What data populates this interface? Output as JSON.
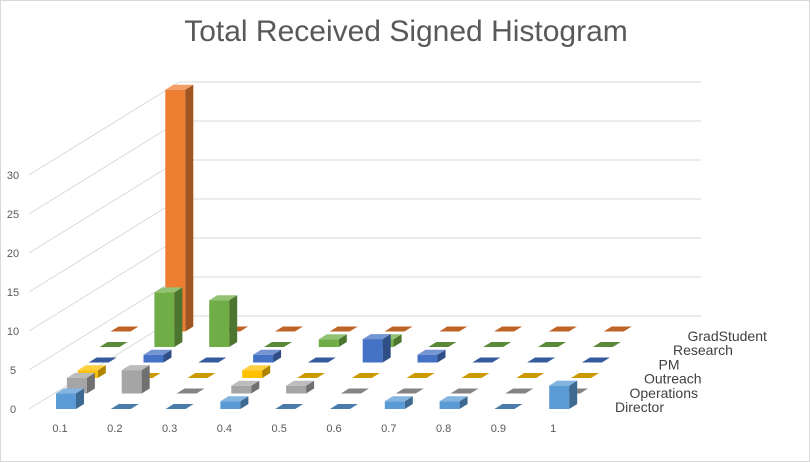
{
  "chart_data": {
    "type": "bar",
    "variant": "3d-column",
    "title": "Total Received Signed Histogram",
    "xlabel": "",
    "ylabel": "",
    "categories": [
      "0.1",
      "0.2",
      "0.3",
      "0.4",
      "0.5",
      "0.6",
      "0.7",
      "0.8",
      "0.9",
      "1"
    ],
    "ylim": [
      0,
      30
    ],
    "yticks": [
      "0",
      "5",
      "10",
      "15",
      "20",
      "25",
      "30"
    ],
    "grid": true,
    "legend": "series labels along depth axis (right)",
    "series": [
      {
        "name": "Director",
        "color": "#5b9bd5",
        "values": [
          2,
          0,
          0,
          1,
          0,
          0,
          1,
          1,
          0,
          3
        ]
      },
      {
        "name": "Operations",
        "color": "#a5a5a5",
        "values": [
          2,
          3,
          0,
          1,
          1,
          0,
          0,
          0,
          0,
          0
        ]
      },
      {
        "name": "Outreach",
        "color": "#ffc000",
        "values": [
          1,
          0,
          0,
          1,
          0,
          0,
          0,
          0,
          0,
          0
        ]
      },
      {
        "name": "PM",
        "color": "#4472c4",
        "values": [
          0,
          1,
          0,
          1,
          0,
          3,
          1,
          0,
          0,
          0
        ]
      },
      {
        "name": "Research",
        "color": "#70ad47",
        "values": [
          0,
          7,
          6,
          0,
          1,
          1,
          0,
          0,
          0,
          0
        ]
      },
      {
        "name": "GradStudent",
        "color": "#ed7d31",
        "values": [
          0,
          31,
          0,
          0,
          0,
          0,
          0,
          0,
          0,
          0
        ]
      }
    ]
  }
}
